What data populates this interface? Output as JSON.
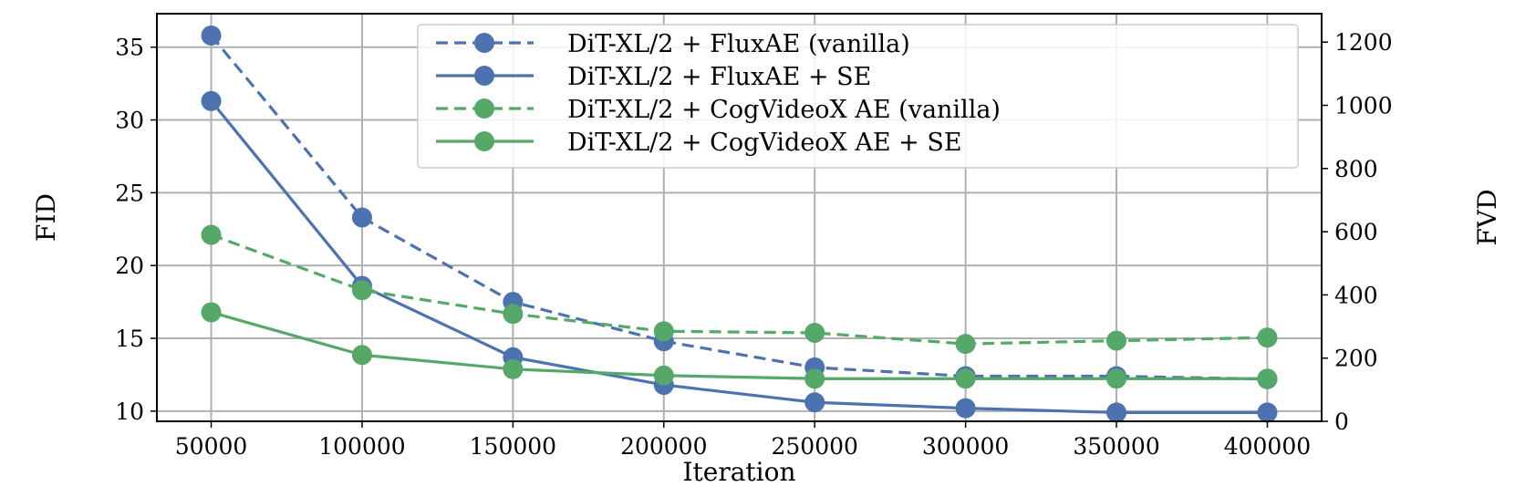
{
  "chart_data": {
    "type": "line",
    "x": [
      50000,
      100000,
      150000,
      200000,
      250000,
      300000,
      350000,
      400000
    ],
    "xlabel": "Iteration",
    "ylabel_left": "FID",
    "ylabel_right": "FVD",
    "xticks": [
      "50000",
      "100000",
      "150000",
      "200000",
      "250000",
      "300000",
      "350000",
      "400000"
    ],
    "yticks_left": [
      "10",
      "15",
      "20",
      "25",
      "30",
      "35"
    ],
    "yticks_right": [
      "0",
      "200",
      "400",
      "600",
      "800",
      "1000",
      "1200"
    ],
    "xlim": [
      32000,
      418000
    ],
    "ylim_left": [
      9.3,
      37.3
    ],
    "ylim_right": [
      0,
      1290
    ],
    "grid": true,
    "legend_position": "top-right",
    "series": [
      {
        "name": "DiT-XL/2 + FluxAE (vanilla)",
        "axis": "left",
        "style": "dashed",
        "color": "#4C72B0",
        "values": [
          35.8,
          23.3,
          17.5,
          14.8,
          13.0,
          12.4,
          12.4,
          12.2
        ]
      },
      {
        "name": "DiT-XL/2 + FluxAE + SE",
        "axis": "left",
        "style": "solid",
        "color": "#4C72B0",
        "values": [
          31.3,
          18.6,
          13.7,
          11.8,
          10.6,
          10.2,
          9.9,
          9.9
        ]
      },
      {
        "name": "DiT-XL/2 + CogVideoX AE (vanilla)",
        "axis": "right",
        "style": "dashed",
        "color": "#55A868",
        "values": [
          590,
          415,
          340,
          285,
          280,
          245,
          255,
          265
        ]
      },
      {
        "name": "DiT-XL/2 + CogVideoX AE + SE",
        "axis": "right",
        "style": "solid",
        "color": "#55A868",
        "values": [
          345,
          210,
          165,
          145,
          135,
          135,
          135,
          135
        ]
      }
    ]
  }
}
